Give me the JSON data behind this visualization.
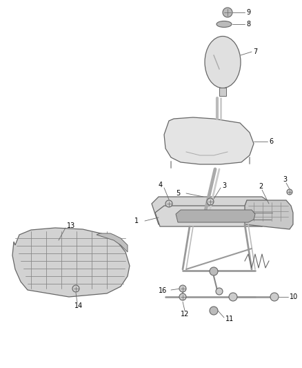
{
  "bg_color": "#ffffff",
  "line_color": "#666666",
  "fill_light": "#e8e8e8",
  "fill_mid": "#cccccc",
  "fill_dark": "#aaaaaa",
  "text_color": "#000000",
  "fig_width": 4.38,
  "fig_height": 5.33,
  "dpi": 100
}
